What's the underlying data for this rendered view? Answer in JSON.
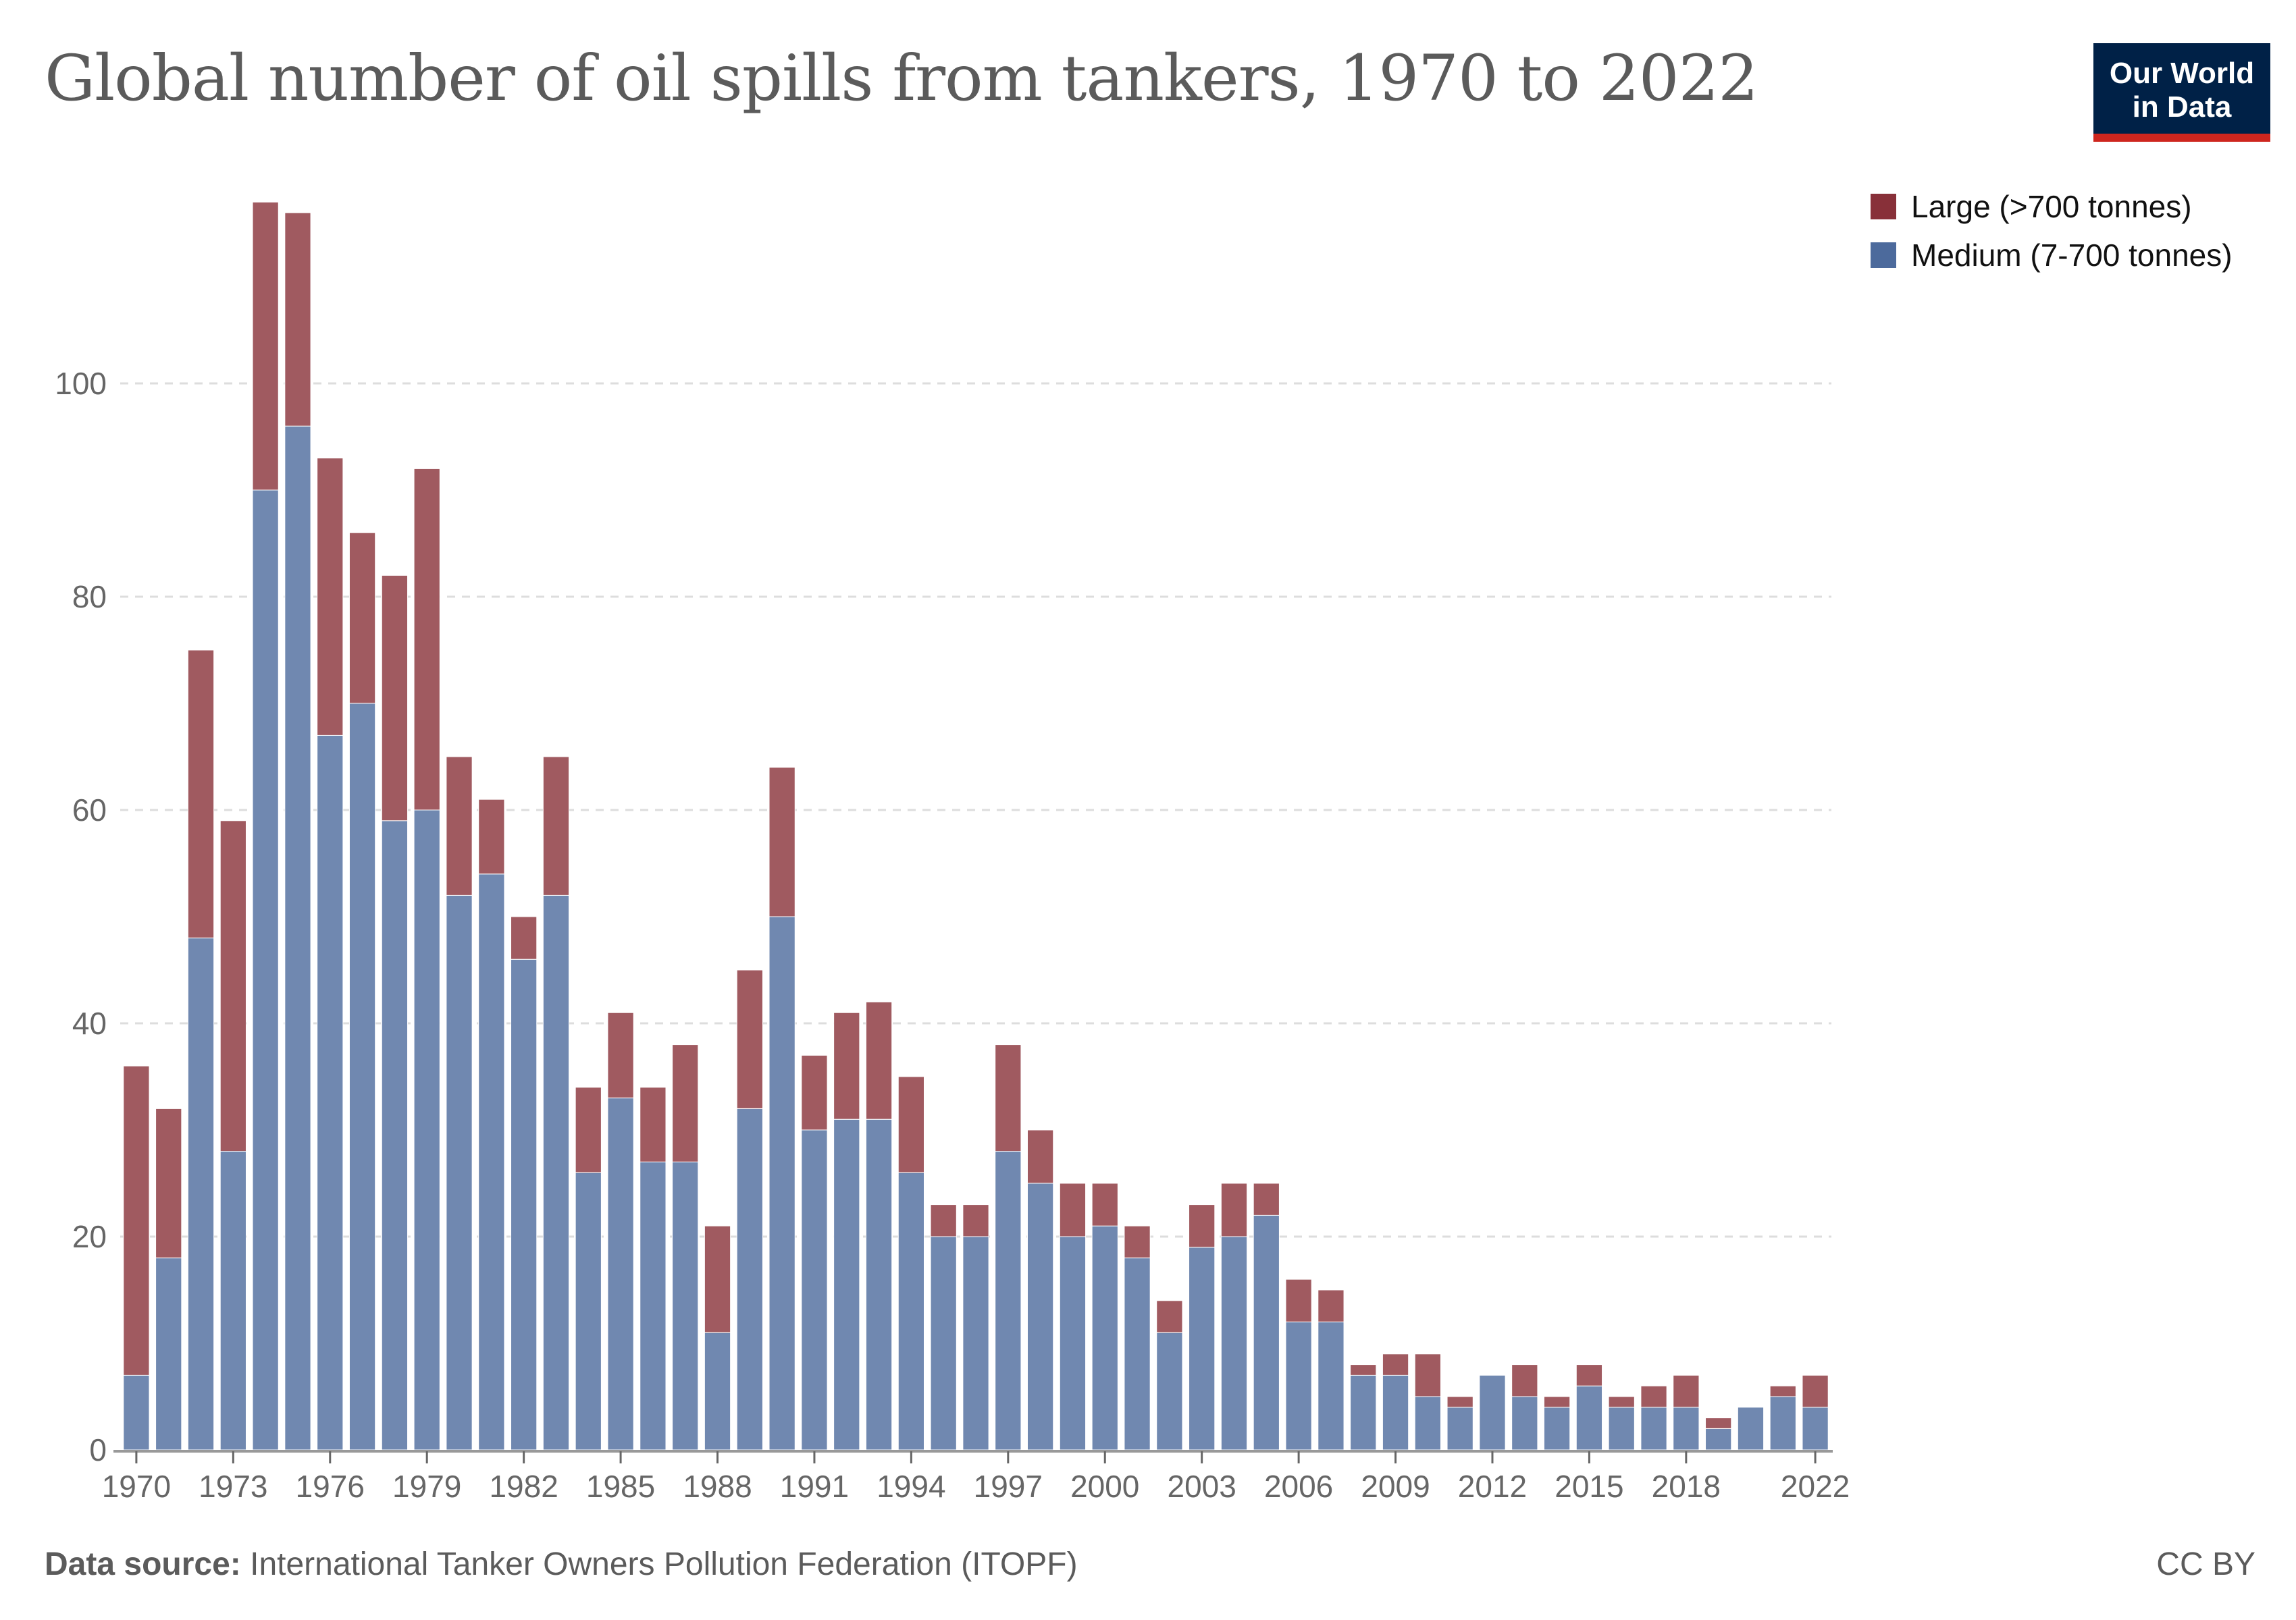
{
  "header": {
    "title": "Global number of oil spills from tankers, 1970 to 2022",
    "logo_line1": "Our World",
    "logo_line2": "in Data"
  },
  "footer": {
    "source_label": "Data source:",
    "source_text": " International Tanker Owners Pollution Federation (ITOPF)",
    "license": "CC BY"
  },
  "colors": {
    "large": "#a05a60",
    "medium": "#7088b0",
    "large_legend": "#883039",
    "medium_legend": "#4c6a9c",
    "logo_bg": "#002147",
    "logo_bar": "#ce261e"
  },
  "chart_data": {
    "type": "bar",
    "stacked": true,
    "title": "Global number of oil spills from tankers, 1970 to 2022",
    "xlabel": "",
    "ylabel": "",
    "ylim": [
      0,
      120
    ],
    "yticks": [
      0,
      20,
      40,
      60,
      80,
      100
    ],
    "xtick_labels": [
      "1970",
      "1973",
      "1976",
      "1979",
      "1982",
      "1985",
      "1988",
      "1991",
      "1994",
      "1997",
      "2000",
      "2003",
      "2006",
      "2009",
      "2012",
      "2015",
      "2018",
      "2022"
    ],
    "grid": true,
    "legend_position": "top-right",
    "categories": [
      1970,
      1971,
      1972,
      1973,
      1974,
      1975,
      1976,
      1977,
      1978,
      1979,
      1980,
      1981,
      1982,
      1983,
      1984,
      1985,
      1986,
      1987,
      1988,
      1989,
      1990,
      1991,
      1992,
      1993,
      1994,
      1995,
      1996,
      1997,
      1998,
      1999,
      2000,
      2001,
      2002,
      2003,
      2004,
      2005,
      2006,
      2007,
      2008,
      2009,
      2010,
      2011,
      2012,
      2013,
      2014,
      2015,
      2016,
      2017,
      2018,
      2019,
      2020,
      2021,
      2022
    ],
    "series": [
      {
        "name": "Medium (7-700 tonnes)",
        "key": "medium",
        "values": [
          7,
          18,
          48,
          28,
          90,
          96,
          67,
          70,
          59,
          60,
          52,
          54,
          46,
          52,
          26,
          33,
          27,
          27,
          11,
          32,
          50,
          30,
          31,
          31,
          26,
          20,
          20,
          28,
          25,
          20,
          21,
          18,
          11,
          19,
          20,
          22,
          12,
          12,
          7,
          7,
          5,
          4,
          7,
          5,
          4,
          6,
          4,
          4,
          4,
          2,
          4,
          5,
          4
        ]
      },
      {
        "name": "Large (>700 tonnes)",
        "key": "large",
        "values": [
          29,
          14,
          27,
          31,
          27,
          20,
          26,
          16,
          23,
          32,
          13,
          7,
          4,
          13,
          8,
          8,
          7,
          11,
          10,
          13,
          14,
          7,
          10,
          11,
          9,
          3,
          3,
          10,
          5,
          5,
          4,
          3,
          3,
          4,
          5,
          3,
          4,
          3,
          1,
          2,
          4,
          1,
          0,
          3,
          1,
          2,
          1,
          2,
          3,
          1,
          0,
          1,
          3
        ]
      }
    ],
    "legend": [
      {
        "label": "Large (>700 tonnes)",
        "key": "large"
      },
      {
        "label": "Medium (7-700 tonnes)",
        "key": "medium"
      }
    ]
  }
}
